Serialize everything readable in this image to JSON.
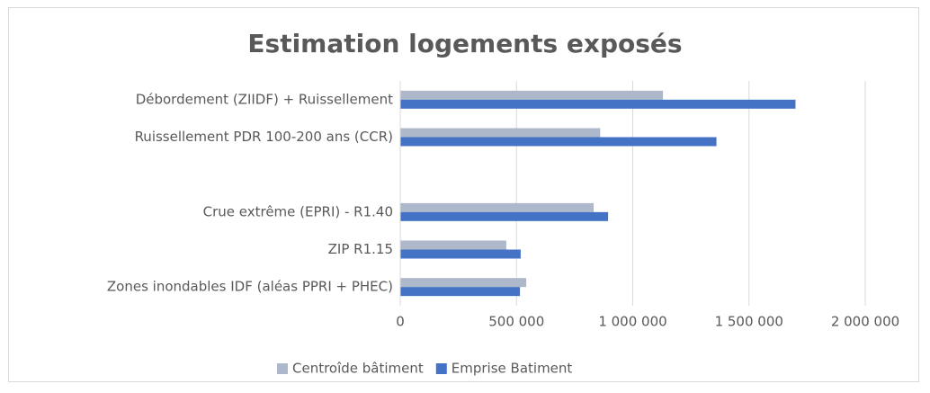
{
  "chart_data": {
    "type": "bar",
    "orientation": "horizontal",
    "title": "Estimation logements exposés",
    "categories": [
      "Débordement (ZIIDF) + Ruissellement",
      "Ruissellement PDR 100-200 ans (CCR)",
      null,
      "Crue extrême (EPRI) - R1.40",
      "ZIP R1.15",
      "Zones inondables IDF (aléas PPRI + PHEC)"
    ],
    "series": [
      {
        "name": "Centroîde bâtiment",
        "color": "#adb9ca",
        "values": [
          1130000,
          860000,
          null,
          832000,
          456000,
          542000
        ]
      },
      {
        "name": "Emprise Batiment",
        "color": "#4472c4",
        "values": [
          1700000,
          1360000,
          null,
          894000,
          518000,
          515000
        ]
      }
    ],
    "xlim": [
      0,
      2000000
    ],
    "xticks": [
      0,
      {
        "value": 500000,
        "label": "500 000"
      },
      {
        "value": 1000000,
        "label": "1 000 000"
      },
      {
        "value": 1500000,
        "label": "1 500 000"
      },
      {
        "value": 2000000,
        "label": "2 000 000"
      }
    ],
    "grid": true,
    "legend": "bottom"
  }
}
